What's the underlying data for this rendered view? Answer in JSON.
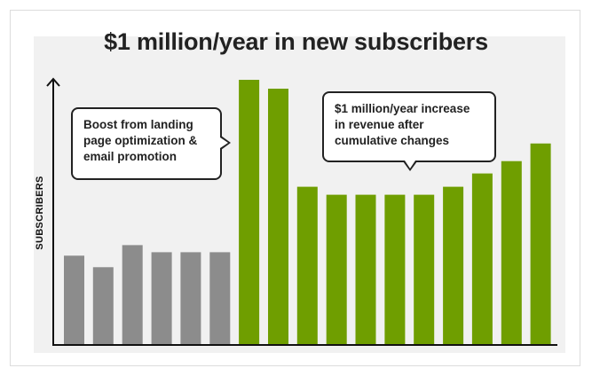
{
  "chart_data": {
    "type": "bar",
    "title": "$1 million/year in new subscribers",
    "ylabel": "SUBSCRIBERS",
    "xlabel": "",
    "ylim": [
      0,
      300
    ],
    "values": [
      101,
      88,
      113,
      105,
      105,
      105,
      300,
      290,
      179,
      170,
      170,
      170,
      170,
      179,
      194,
      208,
      228
    ],
    "bar_colors": [
      "#8c8c8c",
      "#8c8c8c",
      "#8c8c8c",
      "#8c8c8c",
      "#8c8c8c",
      "#8c8c8c",
      "#6f9e00",
      "#6f9e00",
      "#6f9e00",
      "#6f9e00",
      "#6f9e00",
      "#6f9e00",
      "#6f9e00",
      "#6f9e00",
      "#6f9e00",
      "#6f9e00",
      "#6f9e00"
    ],
    "grid": false,
    "annotations": [
      "Boost from landing page optimization & email promotion",
      "$1 million/year increase in revenue after cumulative changes"
    ]
  },
  "colors": {
    "gray_bar": "#8c8c8c",
    "green_bar": "#6f9e00",
    "background": "#f1f1f1",
    "axis": "#111111"
  }
}
